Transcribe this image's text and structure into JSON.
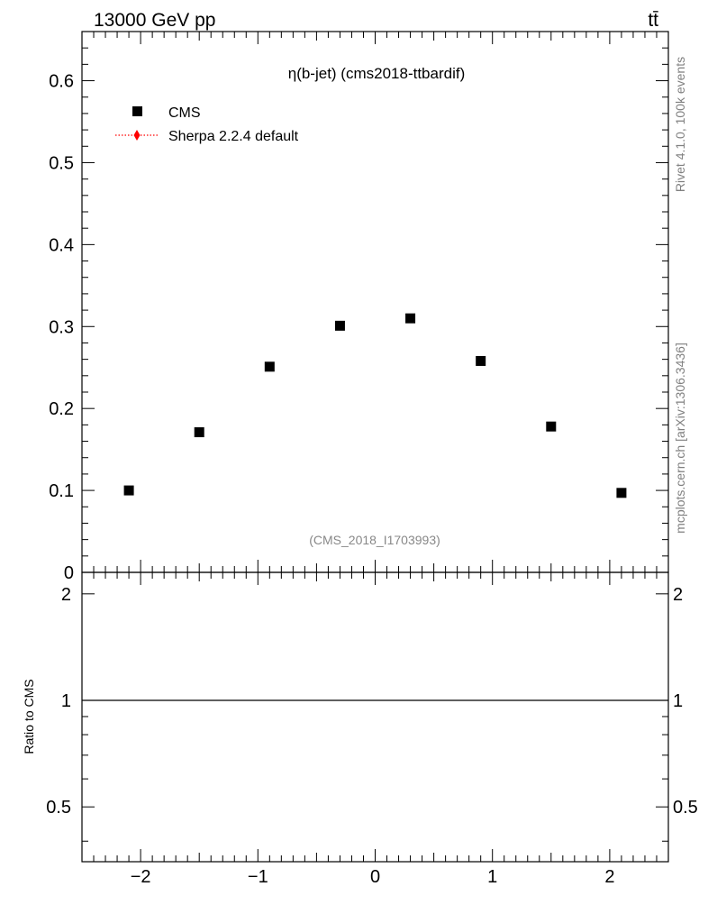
{
  "header": {
    "left": "13000 GeV pp",
    "right": "tt̄"
  },
  "side_labels": {
    "rivet": "Rivet 4.1.0,  100k events",
    "mcplots": "mcplots.cern.ch [arXiv:1306.3436]"
  },
  "chart_data": {
    "type": "scatter",
    "title": "η(b-jet) (cms2018-ttbardif)",
    "watermark": "(CMS_2018_I1703993)",
    "legend_position": "top-left",
    "main": {
      "xlim": [
        -2.5,
        2.5
      ],
      "ylim": [
        0,
        0.66
      ],
      "y_tick_labels": [
        "0",
        "0.1",
        "0.2",
        "0.3",
        "0.4",
        "0.5",
        "0.6"
      ],
      "y_ticks": [
        0,
        0.1,
        0.2,
        0.3,
        0.4,
        0.5,
        0.6
      ],
      "series": [
        {
          "name": "CMS",
          "marker": "square",
          "color": "#000000",
          "x": [
            -2.1,
            -1.5,
            -0.9,
            -0.3,
            0.3,
            0.9,
            1.5,
            2.1
          ],
          "y": [
            0.1,
            0.171,
            0.251,
            0.301,
            0.31,
            0.258,
            0.178,
            0.097
          ]
        },
        {
          "name": "Sherpa 2.2.4 default",
          "marker": "diamond",
          "line": "dotted",
          "color": "#ff0000",
          "x": [],
          "y": []
        }
      ]
    },
    "ratio": {
      "ylabel": "Ratio to CMS",
      "ylim": [
        0.35,
        2.3
      ],
      "y_tick_labels": [
        "0.5",
        "1",
        "2"
      ],
      "y_ticks": [
        0.5,
        1,
        2
      ],
      "reference_line": 1,
      "x_tick_labels": [
        "−2",
        "−1",
        "0",
        "1",
        "2"
      ],
      "x_ticks": [
        -2,
        -1,
        0,
        1,
        2
      ]
    }
  }
}
